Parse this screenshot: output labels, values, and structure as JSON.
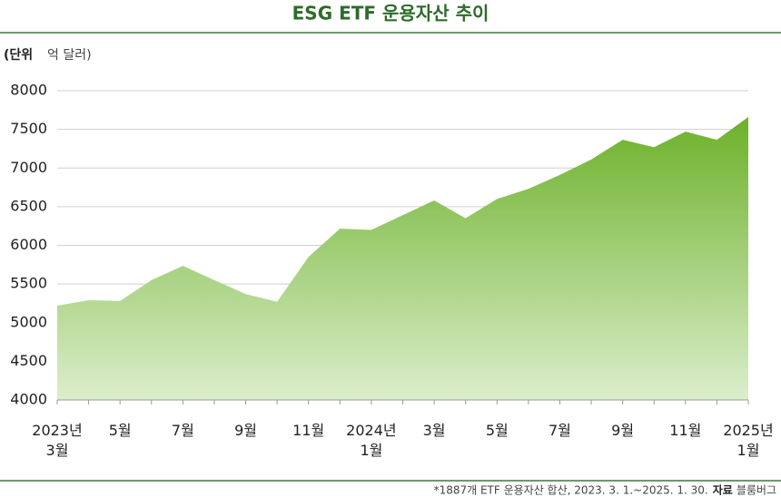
{
  "chart_data": {
    "type": "area",
    "title": "ESG ETF 운용자산 추이",
    "unit_label": "(단위",
    "unit_text": "억 달러)",
    "categories": [
      "2023년\n3월",
      null,
      "5월",
      null,
      "7월",
      null,
      "9월",
      null,
      "11월",
      null,
      "2024년\n1월",
      null,
      "3월",
      null,
      "5월",
      null,
      "7월",
      null,
      "9월",
      null,
      "11월",
      null,
      "2025년\n1월"
    ],
    "values": [
      5220,
      5290,
      5280,
      5550,
      5735,
      5550,
      5370,
      5270,
      5850,
      6215,
      6200,
      6390,
      6580,
      6350,
      6600,
      6730,
      6910,
      7110,
      7365,
      7270,
      7470,
      7365,
      7660
    ],
    "color": "#6cb12a",
    "ylim": [
      4000,
      8000
    ],
    "yticks": [
      4000,
      4500,
      5000,
      5500,
      6000,
      6500,
      7000,
      7500,
      8000
    ],
    "grid": true,
    "note": "*1887개 ETF 운용자산 합산, 2023. 3. 1.~2025. 1. 30.",
    "source_label": "자료",
    "source": "블룸버그"
  }
}
